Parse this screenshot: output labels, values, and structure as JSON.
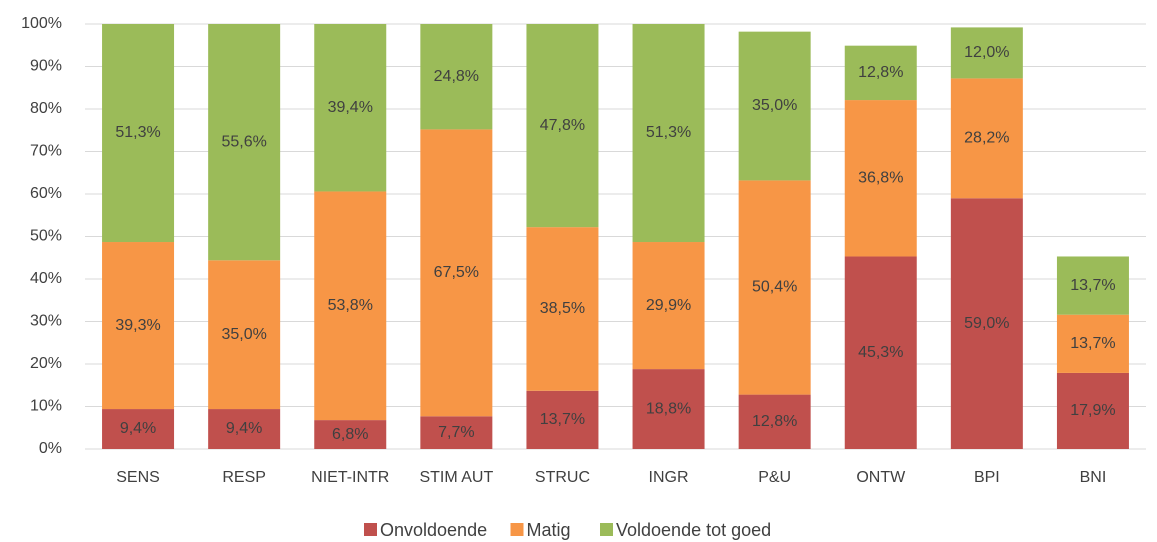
{
  "chart_data": {
    "type": "stacked_bar",
    "categories": [
      "SENS",
      "RESP",
      "NIET-INTR",
      "STIM AUT",
      "STRUC",
      "INGR",
      "P&U",
      "ONTW",
      "BPI",
      "BNI"
    ],
    "series": [
      {
        "name": "Onvoldoende",
        "color": "#c0504d",
        "values": [
          9.4,
          9.4,
          6.8,
          7.7,
          13.7,
          18.8,
          12.8,
          45.3,
          59.0,
          17.9
        ],
        "value_labels": [
          "9,4%",
          "9,4%",
          "6,8%",
          "7,7%",
          "13,7%",
          "18,8%",
          "12,8%",
          "45,3%",
          "59,0%",
          "17,9%"
        ]
      },
      {
        "name": "Matig",
        "color": "#f79646",
        "values": [
          39.3,
          35.0,
          53.8,
          67.5,
          38.5,
          29.9,
          50.4,
          36.8,
          28.2,
          13.7
        ],
        "value_labels": [
          "39,3%",
          "35,0%",
          "53,8%",
          "67,5%",
          "38,5%",
          "29,9%",
          "50,4%",
          "36,8%",
          "28,2%",
          "13,7%"
        ]
      },
      {
        "name": "Voldoende tot goed",
        "color": "#9bbb59",
        "values": [
          51.3,
          55.6,
          39.4,
          24.8,
          47.8,
          51.3,
          35.0,
          12.8,
          12.0,
          13.7
        ],
        "value_labels": [
          "51,3%",
          "55,6%",
          "39,4%",
          "24,8%",
          "47,8%",
          "51,3%",
          "35,0%",
          "12,8%",
          "12,0%",
          "13,7%"
        ]
      }
    ],
    "ylim": [
      0,
      100
    ],
    "yticks": [
      {
        "value": 0,
        "label": "0%"
      },
      {
        "value": 10,
        "label": "10%"
      },
      {
        "value": 20,
        "label": "20%"
      },
      {
        "value": 30,
        "label": "30%"
      },
      {
        "value": 40,
        "label": "40%"
      },
      {
        "value": 50,
        "label": "50%"
      },
      {
        "value": 60,
        "label": "60%"
      },
      {
        "value": 70,
        "label": "70%"
      },
      {
        "value": 80,
        "label": "80%"
      },
      {
        "value": 90,
        "label": "90%"
      },
      {
        "value": 100,
        "label": "100%"
      }
    ],
    "grid": true,
    "legend": "bottom"
  }
}
